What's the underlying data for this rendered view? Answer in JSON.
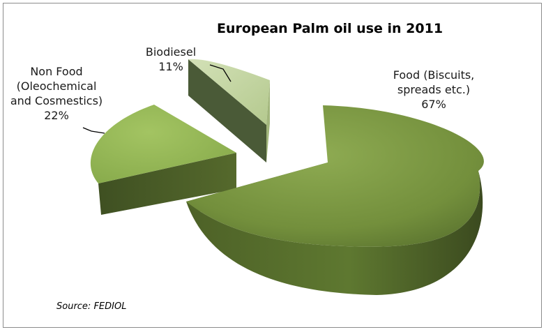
{
  "chart_data": {
    "type": "pie",
    "title": "European Palm oil use in 2011",
    "categories": [
      "Food (Biscuits, spreads etc.)",
      "Non Food (Oleochemical and Cosmestics)",
      "Biodiesel"
    ],
    "values": [
      67,
      22,
      11
    ],
    "labels": [
      {
        "lines": [
          "Food (Biscuits,",
          "spreads etc.)",
          "67%"
        ]
      },
      {
        "lines": [
          "Non Food",
          "(Oleochemical",
          "and Cosmestics)",
          "22%"
        ]
      },
      {
        "lines": [
          "Biodiesel",
          "11%"
        ]
      }
    ],
    "exploded": true,
    "three_d": true,
    "colors": {
      "food": "#7a9640",
      "non_food": "#8aae4b",
      "biodiesel": "#c3d4a0"
    }
  },
  "source": "Source: FEDIOL"
}
